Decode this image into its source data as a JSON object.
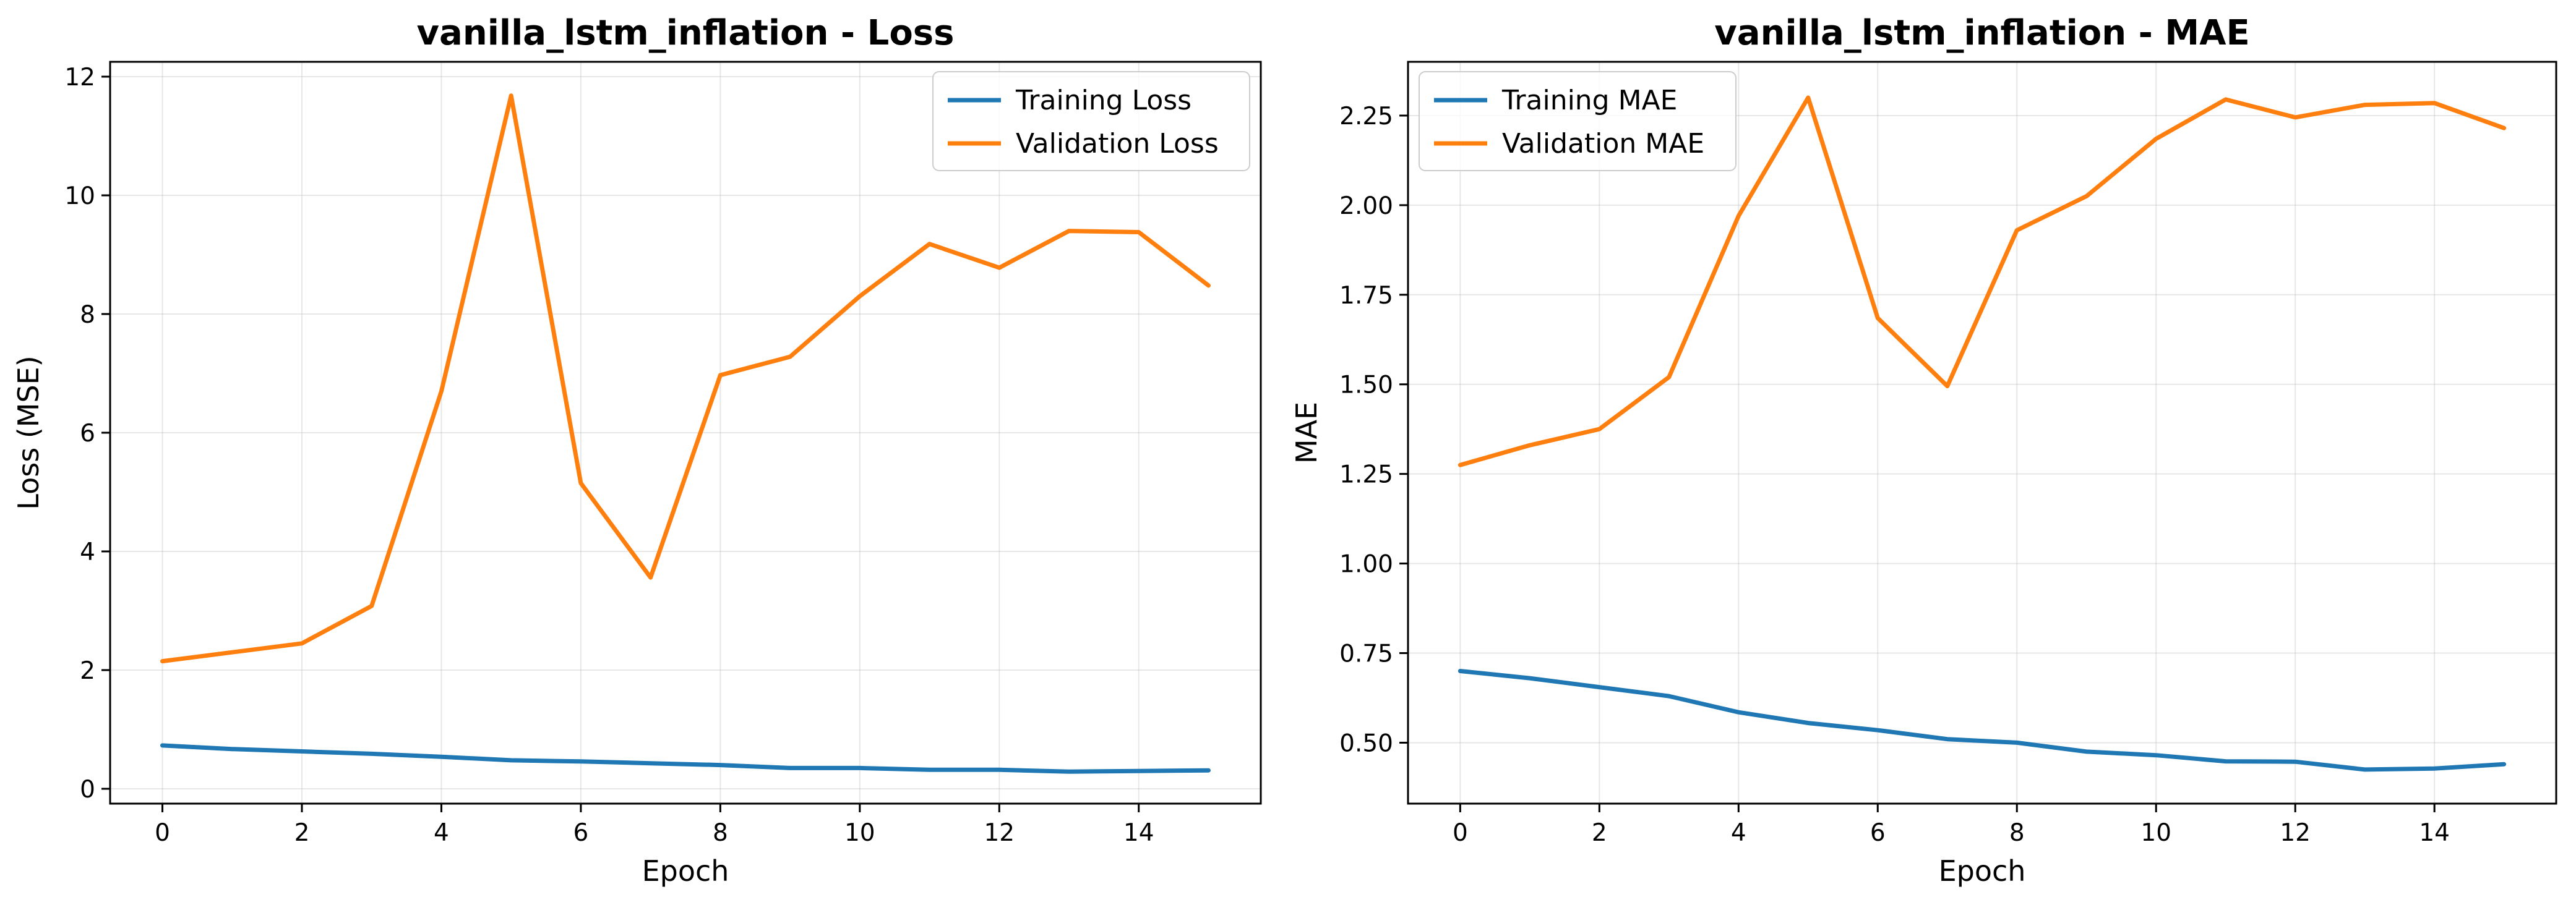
{
  "chart_data": [
    {
      "type": "line",
      "title": "vanilla_lstm_inflation - Loss",
      "xlabel": "Epoch",
      "ylabel": "Loss (MSE)",
      "x": [
        0,
        1,
        2,
        3,
        4,
        5,
        6,
        7,
        8,
        9,
        10,
        11,
        12,
        13,
        14,
        15
      ],
      "xlim": [
        -0.75,
        15.75
      ],
      "ylim": [
        -0.25,
        12.25
      ],
      "xticks": [
        0,
        2,
        4,
        6,
        8,
        10,
        12,
        14
      ],
      "yticks": [
        0,
        2,
        4,
        6,
        8,
        10,
        12
      ],
      "ytick_labels": [
        "0",
        "2",
        "4",
        "6",
        "8",
        "10",
        "12"
      ],
      "grid": true,
      "legend_position": "top-right",
      "series": [
        {
          "name": "Training Loss",
          "color": "#1f77b4",
          "values": [
            0.73,
            0.67,
            0.63,
            0.59,
            0.54,
            0.48,
            0.46,
            0.43,
            0.4,
            0.35,
            0.35,
            0.32,
            0.32,
            0.29,
            0.3,
            0.31
          ]
        },
        {
          "name": "Validation Loss",
          "color": "#ff7f0e",
          "values": [
            2.15,
            2.3,
            2.45,
            3.08,
            6.7,
            11.68,
            5.15,
            3.56,
            6.97,
            7.28,
            8.3,
            9.18,
            8.78,
            9.4,
            9.38,
            8.48
          ]
        }
      ]
    },
    {
      "type": "line",
      "title": "vanilla_lstm_inflation - MAE",
      "xlabel": "Epoch",
      "ylabel": "MAE",
      "x": [
        0,
        1,
        2,
        3,
        4,
        5,
        6,
        7,
        8,
        9,
        10,
        11,
        12,
        13,
        14,
        15
      ],
      "xlim": [
        -0.75,
        15.75
      ],
      "ylim": [
        0.33,
        2.4
      ],
      "xticks": [
        0,
        2,
        4,
        6,
        8,
        10,
        12,
        14
      ],
      "yticks": [
        0.5,
        0.75,
        1.0,
        1.25,
        1.5,
        1.75,
        2.0,
        2.25
      ],
      "ytick_labels": [
        "0.50",
        "0.75",
        "1.00",
        "1.25",
        "1.50",
        "1.75",
        "2.00",
        "2.25"
      ],
      "grid": true,
      "legend_position": "top-left",
      "series": [
        {
          "name": "Training MAE",
          "color": "#1f77b4",
          "values": [
            0.7,
            0.68,
            0.655,
            0.63,
            0.585,
            0.555,
            0.535,
            0.51,
            0.5,
            0.475,
            0.465,
            0.448,
            0.447,
            0.425,
            0.428,
            0.44
          ]
        },
        {
          "name": "Validation MAE",
          "color": "#ff7f0e",
          "values": [
            1.275,
            1.33,
            1.375,
            1.52,
            1.97,
            2.3,
            1.685,
            1.495,
            1.93,
            2.025,
            2.185,
            2.295,
            2.245,
            2.28,
            2.285,
            2.215
          ]
        }
      ]
    }
  ]
}
